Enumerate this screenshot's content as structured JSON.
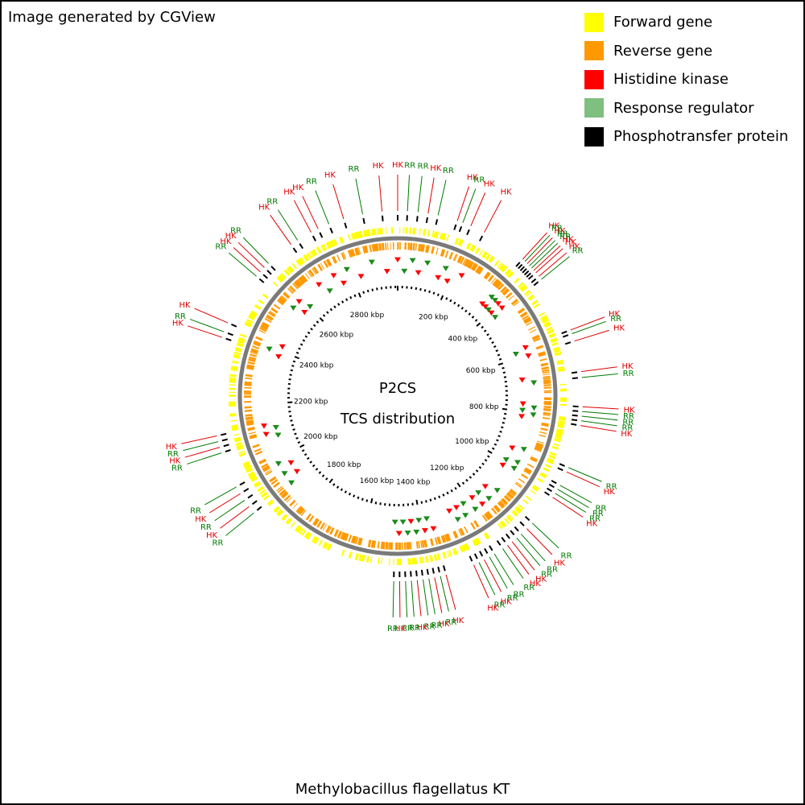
{
  "header": {
    "credit": "Image generated by CGView"
  },
  "legend": [
    {
      "label": "Forward gene",
      "color": "#FFFF00"
    },
    {
      "label": "Reverse gene",
      "color": "#FF9900"
    },
    {
      "label": "Histidine kinase",
      "color": "#FF0000"
    },
    {
      "label": "Response regulator",
      "color": "#7FBF7F"
    },
    {
      "label": "Phosphotransfer protein",
      "color": "#000000"
    }
  ],
  "map": {
    "title": "P2CS",
    "subtitle": "TCS distribution",
    "genome_size_kbp": 2970,
    "tick_labels": [
      "200 kbp",
      "400 kbp",
      "600 kbp",
      "800 kbp",
      "1000 kbp",
      "1200 kbp",
      "1400 kbp",
      "1600 kbp",
      "1800 kbp",
      "2000 kbp",
      "2200 kbp",
      "2400 kbp",
      "2600 kbp",
      "2800 kbp"
    ],
    "tick_positions_kbp": [
      200,
      400,
      600,
      800,
      1000,
      1200,
      1400,
      1600,
      1800,
      2000,
      2200,
      2400,
      2600,
      2800
    ],
    "label_colors": {
      "HK": "#E00000",
      "RR": "#007A00"
    },
    "features": [
      {
        "type": "HK",
        "pos_kbp": 0
      },
      {
        "type": "RR",
        "pos_kbp": 25
      },
      {
        "type": "RR",
        "pos_kbp": 52
      },
      {
        "type": "HK",
        "pos_kbp": 78
      },
      {
        "type": "RR",
        "pos_kbp": 104
      },
      {
        "type": "HK",
        "pos_kbp": 155
      },
      {
        "type": "RR",
        "pos_kbp": 170
      },
      {
        "type": "HK",
        "pos_kbp": 192
      },
      {
        "type": "HK",
        "pos_kbp": 230
      },
      {
        "type": "HK",
        "pos_kbp": 350
      },
      {
        "type": "RR",
        "pos_kbp": 358
      },
      {
        "type": "HK",
        "pos_kbp": 366
      },
      {
        "type": "RR",
        "pos_kbp": 374
      },
      {
        "type": "RR",
        "pos_kbp": 382
      },
      {
        "type": "HK",
        "pos_kbp": 390
      },
      {
        "type": "HK",
        "pos_kbp": 398
      },
      {
        "type": "HK",
        "pos_kbp": 410
      },
      {
        "type": "RR",
        "pos_kbp": 420
      },
      {
        "type": "HK",
        "pos_kbp": 570
      },
      {
        "type": "RR",
        "pos_kbp": 580
      },
      {
        "type": "HK",
        "pos_kbp": 600
      },
      {
        "type": "HK",
        "pos_kbp": 680
      },
      {
        "type": "RR",
        "pos_kbp": 695
      },
      {
        "type": "HK",
        "pos_kbp": 770
      },
      {
        "type": "RR",
        "pos_kbp": 782
      },
      {
        "type": "RR",
        "pos_kbp": 794
      },
      {
        "type": "RR",
        "pos_kbp": 806
      },
      {
        "type": "HK",
        "pos_kbp": 818
      },
      {
        "type": "RR",
        "pos_kbp": 930
      },
      {
        "type": "HK",
        "pos_kbp": 942
      },
      {
        "type": "RR",
        "pos_kbp": 980
      },
      {
        "type": "RR",
        "pos_kbp": 992
      },
      {
        "type": "RR",
        "pos_kbp": 1004
      },
      {
        "type": "HK",
        "pos_kbp": 1016
      },
      {
        "type": "RR",
        "pos_kbp": 1100
      },
      {
        "type": "HK",
        "pos_kbp": 1120
      },
      {
        "type": "RR",
        "pos_kbp": 1140
      },
      {
        "type": "RR",
        "pos_kbp": 1155
      },
      {
        "type": "HK",
        "pos_kbp": 1170
      },
      {
        "type": "HK",
        "pos_kbp": 1185
      },
      {
        "type": "RR",
        "pos_kbp": 1200
      },
      {
        "type": "RR",
        "pos_kbp": 1225
      },
      {
        "type": "RR",
        "pos_kbp": 1240
      },
      {
        "type": "HK",
        "pos_kbp": 1255
      },
      {
        "type": "RR",
        "pos_kbp": 1270
      },
      {
        "type": "HK",
        "pos_kbp": 1285
      },
      {
        "type": "HK",
        "pos_kbp": 1360
      },
      {
        "type": "RR",
        "pos_kbp": 1375
      },
      {
        "type": "HK",
        "pos_kbp": 1390
      },
      {
        "type": "RR",
        "pos_kbp": 1405
      },
      {
        "type": "RR",
        "pos_kbp": 1420
      },
      {
        "type": "HK",
        "pos_kbp": 1435
      },
      {
        "type": "RR",
        "pos_kbp": 1450
      },
      {
        "type": "RR",
        "pos_kbp": 1465
      },
      {
        "type": "HK",
        "pos_kbp": 1480
      },
      {
        "type": "RR",
        "pos_kbp": 1495
      },
      {
        "type": "RR",
        "pos_kbp": 1905
      },
      {
        "type": "HK",
        "pos_kbp": 1925
      },
      {
        "type": "RR",
        "pos_kbp": 1945
      },
      {
        "type": "HK",
        "pos_kbp": 1965
      },
      {
        "type": "RR",
        "pos_kbp": 1985
      },
      {
        "type": "RR",
        "pos_kbp": 2080
      },
      {
        "type": "HK",
        "pos_kbp": 2095
      },
      {
        "type": "RR",
        "pos_kbp": 2110
      },
      {
        "type": "HK",
        "pos_kbp": 2125
      },
      {
        "type": "HK",
        "pos_kbp": 2380
      },
      {
        "type": "RR",
        "pos_kbp": 2395
      },
      {
        "type": "HK",
        "pos_kbp": 2420
      },
      {
        "type": "RR",
        "pos_kbp": 2560
      },
      {
        "type": "HK",
        "pos_kbp": 2575
      },
      {
        "type": "HK",
        "pos_kbp": 2590
      },
      {
        "type": "RR",
        "pos_kbp": 2605
      },
      {
        "type": "HK",
        "pos_kbp": 2680
      },
      {
        "type": "RR",
        "pos_kbp": 2700
      },
      {
        "type": "HK",
        "pos_kbp": 2740
      },
      {
        "type": "HK",
        "pos_kbp": 2760
      },
      {
        "type": "RR",
        "pos_kbp": 2790
      },
      {
        "type": "HK",
        "pos_kbp": 2830
      },
      {
        "type": "RR",
        "pos_kbp": 2880
      },
      {
        "type": "HK",
        "pos_kbp": 2930
      }
    ]
  },
  "footer": {
    "organism": "Methylobacillus flagellatus KT"
  }
}
